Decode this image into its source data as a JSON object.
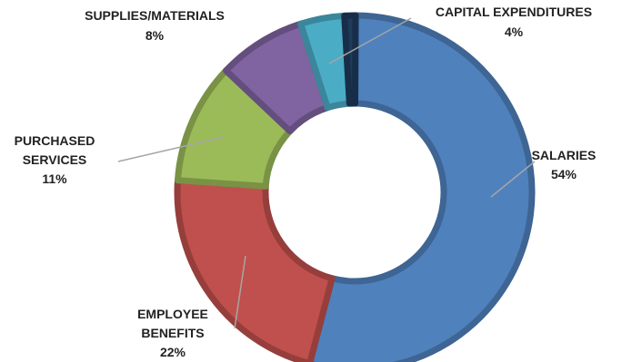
{
  "chart_data": {
    "type": "pie",
    "variant": "donut",
    "title": "",
    "slices": [
      {
        "label": "SALARIES",
        "value": 54,
        "value_label": "54%",
        "color": "#4f81bd"
      },
      {
        "label": "EMPLOYEE BENEFITS",
        "value": 22,
        "value_label": "22%",
        "color": "#c0504d"
      },
      {
        "label": "PURCHASED SERVICES",
        "value": 11,
        "value_label": "11%",
        "color": "#9bbb59"
      },
      {
        "label": "SUPPLIES/MATERIALS",
        "value": 8,
        "value_label": "8%",
        "color": "#8064a2"
      },
      {
        "label": "CAPITAL EXPENDITURES",
        "value": 4,
        "value_label": "4%",
        "color": "#4bacc6"
      },
      {
        "label": "",
        "value": 1,
        "value_label": "",
        "color": "#1f3b5c"
      }
    ],
    "legend": "none",
    "label_style": "outside with leader lines"
  }
}
